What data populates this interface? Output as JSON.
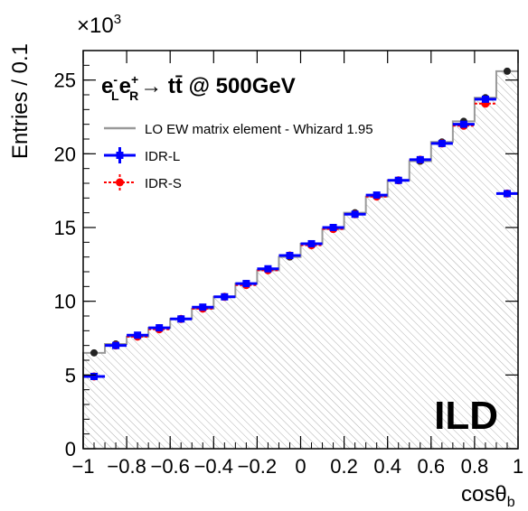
{
  "chart_data": {
    "type": "histogram",
    "title": "",
    "process_label": {
      "main": "e",
      "sub_l": "L",
      "sup_minus": "-",
      "second": "e",
      "sub_r": "R",
      "sup_plus": "+",
      "arrow": "→ tt̄ @ 500GeV"
    },
    "experiment_label": "ILD",
    "xlabel": "cosθ",
    "xlabel_sub": "b",
    "ylabel": "Entries / 0.1",
    "y_multiplier": "×10",
    "y_multiplier_exp": "3",
    "xlim": [
      -1,
      1
    ],
    "ylim": [
      0,
      27
    ],
    "x_ticks": [
      -1,
      -0.8,
      -0.6,
      -0.4,
      -0.2,
      0,
      0.2,
      0.4,
      0.6,
      0.8,
      1
    ],
    "x_tick_labels": [
      "−1",
      "−0.8",
      "−0.6",
      "−0.4",
      "−0.2",
      "0",
      "0.2",
      "0.4",
      "0.6",
      "0.8",
      "1"
    ],
    "y_ticks": [
      0,
      5,
      10,
      15,
      20,
      25
    ],
    "y_tick_labels": [
      "0",
      "5",
      "10",
      "15",
      "20",
      "25"
    ],
    "bin_width": 0.1,
    "bin_centers": [
      -0.95,
      -0.85,
      -0.75,
      -0.65,
      -0.55,
      -0.45,
      -0.35,
      -0.25,
      -0.15,
      -0.05,
      0.05,
      0.15,
      0.25,
      0.35,
      0.45,
      0.55,
      0.65,
      0.75,
      0.85,
      0.95
    ],
    "legend": [
      {
        "name": "LO EW matrix element - Whizard 1.95",
        "color": "#999999",
        "style": "line"
      },
      {
        "name": "IDR-L",
        "color": "#0000ff",
        "style": "marker-solid"
      },
      {
        "name": "IDR-S",
        "color": "#ff0000",
        "style": "marker-dashed"
      }
    ],
    "series": [
      {
        "name": "LO EW matrix element - Whizard 1.95",
        "color": "#999999",
        "values": [
          6.5,
          7.1,
          7.6,
          8.2,
          8.8,
          9.5,
          10.3,
          11.2,
          12.1,
          13.0,
          13.9,
          14.9,
          16.0,
          17.1,
          18.2,
          19.5,
          20.8,
          22.2,
          23.8,
          25.6
        ]
      },
      {
        "name": "IDR-L",
        "color": "#0000ff",
        "values": [
          4.9,
          7.0,
          7.7,
          8.2,
          8.8,
          9.6,
          10.3,
          11.2,
          12.2,
          13.1,
          13.9,
          15.0,
          15.9,
          17.2,
          18.2,
          19.6,
          20.7,
          22.0,
          23.7,
          17.3
        ]
      },
      {
        "name": "IDR-S",
        "color": "#ff0000",
        "values": [
          4.9,
          7.0,
          7.6,
          8.1,
          8.8,
          9.5,
          10.3,
          11.1,
          12.1,
          13.1,
          13.8,
          14.9,
          15.9,
          17.1,
          18.2,
          19.6,
          20.7,
          21.9,
          23.4,
          17.3
        ]
      }
    ],
    "grid": false,
    "legend_position": "top-left"
  }
}
